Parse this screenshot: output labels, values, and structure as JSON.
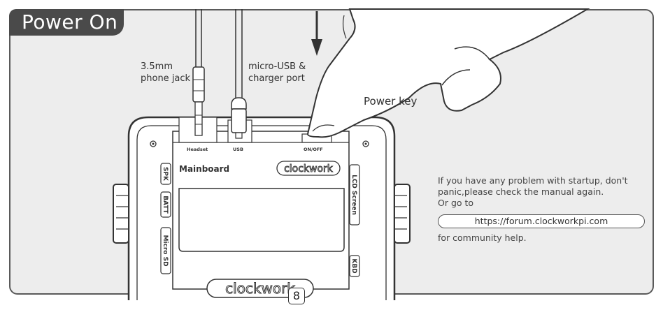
{
  "header": {
    "title": "Power On"
  },
  "labels": {
    "jack_line1": "3.5mm",
    "jack_line2": "phone jack",
    "usb_line1": "micro-USB &",
    "usb_line2": "charger port",
    "power_key": "Power key"
  },
  "board": {
    "port_headset": "Headset",
    "port_usb": "USB",
    "port_onoff": "ON/OFF",
    "mainboard": "Mainboard",
    "brand": "clockwork",
    "brand_bottom": "clockwork",
    "spk": "SPK",
    "batt": "BATT",
    "micro_sd": "Micro SD",
    "lcd_screen": "LCD Screen",
    "kbd": "KBD"
  },
  "help": {
    "line1": "If you have any problem with startup, don't",
    "line2": "panic,please check the manual again.",
    "line3": "Or go to",
    "link": "https://forum.clockworkpi.com",
    "line4": "for community help."
  },
  "page": {
    "number": "8"
  },
  "colors": {
    "outline": "#333333",
    "frame_bg": "#ededed",
    "tab_bg": "#4a4a4a",
    "device_fill": "#ffffff"
  }
}
